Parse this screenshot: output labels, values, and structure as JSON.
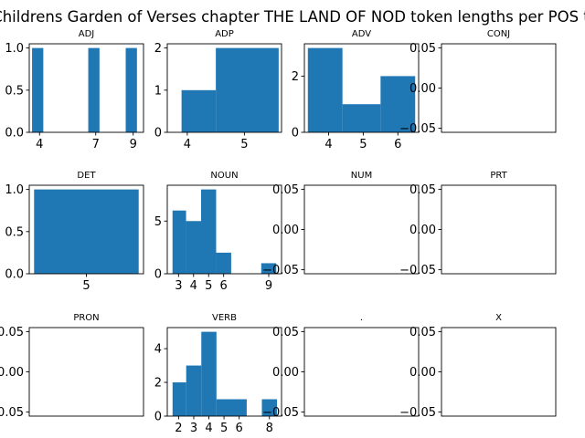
{
  "suptitle": "A Childrens Garden of Verses chapter THE LAND OF NOD token lengths per POS tag",
  "chart_data": [
    {
      "type": "bar",
      "title": "ADJ",
      "bars": [
        {
          "x0": 3.6,
          "x1": 4.2,
          "h": 1
        },
        {
          "x0": 6.6,
          "x1": 7.2,
          "h": 1
        },
        {
          "x0": 8.6,
          "x1": 9.2,
          "h": 1
        }
      ],
      "xlim": [
        3.45,
        9.55
      ],
      "ylim": [
        0,
        1.05
      ],
      "xticks": [
        {
          "v": 4,
          "label": "4"
        },
        {
          "v": 7,
          "label": "7"
        },
        {
          "v": 9,
          "label": "9"
        }
      ],
      "yticks": [
        {
          "v": 0,
          "label": "0.0"
        },
        {
          "v": 0.5,
          "label": "0.5"
        },
        {
          "v": 1,
          "label": "1.0"
        }
      ]
    },
    {
      "type": "bar",
      "title": "ADP",
      "bars": [
        {
          "x0": 3.9,
          "x1": 4.5,
          "h": 1
        },
        {
          "x0": 4.5,
          "x1": 5.6,
          "h": 2
        }
      ],
      "xlim": [
        3.65,
        5.65
      ],
      "ylim": [
        0,
        2.1
      ],
      "xticks": [
        {
          "v": 4,
          "label": "4"
        },
        {
          "v": 5,
          "label": "5"
        }
      ],
      "yticks": [
        {
          "v": 0,
          "label": "0"
        },
        {
          "v": 1,
          "label": "1"
        },
        {
          "v": 2,
          "label": "2"
        }
      ]
    },
    {
      "type": "bar",
      "title": "ADV",
      "bars": [
        {
          "x0": 3.4,
          "x1": 4.4,
          "h": 3
        },
        {
          "x0": 4.4,
          "x1": 5.5,
          "h": 1
        },
        {
          "x0": 5.5,
          "x1": 6.5,
          "h": 2
        }
      ],
      "xlim": [
        3.3,
        6.6
      ],
      "ylim": [
        0,
        3.15
      ],
      "xticks": [
        {
          "v": 4,
          "label": "4"
        },
        {
          "v": 5,
          "label": "5"
        },
        {
          "v": 6,
          "label": "6"
        }
      ],
      "yticks": [
        {
          "v": 0,
          "label": "0"
        },
        {
          "v": 2,
          "label": "2"
        }
      ]
    },
    {
      "type": "bar",
      "title": "CONJ",
      "bars": [],
      "xlim": [
        0,
        1
      ],
      "ylim": [
        -0.055,
        0.055
      ],
      "xticks": [],
      "yticks": [
        {
          "v": -0.05,
          "label": "−0.05"
        },
        {
          "v": 0,
          "label": "0.00"
        },
        {
          "v": 0.05,
          "label": "0.05"
        }
      ]
    },
    {
      "type": "bar",
      "title": "DET",
      "bars": [
        {
          "x0": 4.35,
          "x1": 5.65,
          "h": 1
        }
      ],
      "xlim": [
        4.29,
        5.71
      ],
      "ylim": [
        0,
        1.05
      ],
      "xticks": [
        {
          "v": 5,
          "label": "5"
        }
      ],
      "yticks": [
        {
          "v": 0,
          "label": "0.0"
        },
        {
          "v": 0.5,
          "label": "0.5"
        },
        {
          "v": 1,
          "label": "1.0"
        }
      ]
    },
    {
      "type": "bar",
      "title": "NOUN",
      "bars": [
        {
          "x0": 2.6,
          "x1": 3.5,
          "h": 6
        },
        {
          "x0": 3.5,
          "x1": 4.5,
          "h": 5
        },
        {
          "x0": 4.5,
          "x1": 5.5,
          "h": 8
        },
        {
          "x0": 5.5,
          "x1": 6.5,
          "h": 2
        },
        {
          "x0": 8.5,
          "x1": 9.5,
          "h": 1
        }
      ],
      "xlim": [
        2.25,
        9.85
      ],
      "ylim": [
        0,
        8.4
      ],
      "xticks": [
        {
          "v": 3,
          "label": "3"
        },
        {
          "v": 4,
          "label": "4"
        },
        {
          "v": 5,
          "label": "5"
        },
        {
          "v": 6,
          "label": "6"
        },
        {
          "v": 9,
          "label": "9"
        }
      ],
      "yticks": [
        {
          "v": 0,
          "label": "0"
        },
        {
          "v": 5,
          "label": "5"
        }
      ]
    },
    {
      "type": "bar",
      "title": "NUM",
      "bars": [],
      "xlim": [
        0,
        1
      ],
      "ylim": [
        -0.055,
        0.055
      ],
      "xticks": [],
      "yticks": [
        {
          "v": -0.05,
          "label": "−0.05"
        },
        {
          "v": 0,
          "label": "0.00"
        },
        {
          "v": 0.05,
          "label": "0.05"
        }
      ]
    },
    {
      "type": "bar",
      "title": "PRT",
      "bars": [],
      "xlim": [
        0,
        1
      ],
      "ylim": [
        -0.055,
        0.055
      ],
      "xticks": [],
      "yticks": [
        {
          "v": -0.05,
          "label": "−0.05"
        },
        {
          "v": 0,
          "label": "0.00"
        },
        {
          "v": 0.05,
          "label": "0.05"
        }
      ]
    },
    {
      "type": "bar",
      "title": "PRON",
      "bars": [],
      "xlim": [
        0,
        1
      ],
      "ylim": [
        -0.055,
        0.055
      ],
      "xticks": [],
      "yticks": [
        {
          "v": -0.05,
          "label": "−0.05"
        },
        {
          "v": 0,
          "label": "0.00"
        },
        {
          "v": 0.05,
          "label": "0.05"
        }
      ]
    },
    {
      "type": "bar",
      "title": "VERB",
      "bars": [
        {
          "x0": 1.6,
          "x1": 2.5,
          "h": 2
        },
        {
          "x0": 2.5,
          "x1": 3.5,
          "h": 3
        },
        {
          "x0": 3.5,
          "x1": 4.5,
          "h": 5
        },
        {
          "x0": 4.5,
          "x1": 6.5,
          "h": 1
        },
        {
          "x0": 7.5,
          "x1": 8.5,
          "h": 1
        }
      ],
      "xlim": [
        1.25,
        8.8
      ],
      "ylim": [
        0,
        5.25
      ],
      "xticks": [
        {
          "v": 2,
          "label": "2"
        },
        {
          "v": 3,
          "label": "3"
        },
        {
          "v": 4,
          "label": "4"
        },
        {
          "v": 5,
          "label": "5"
        },
        {
          "v": 6,
          "label": "6"
        },
        {
          "v": 8,
          "label": "8"
        }
      ],
      "yticks": [
        {
          "v": 0,
          "label": "0"
        },
        {
          "v": 2,
          "label": "2"
        },
        {
          "v": 4,
          "label": "4"
        }
      ]
    },
    {
      "type": "bar",
      "title": ".",
      "bars": [],
      "xlim": [
        0,
        1
      ],
      "ylim": [
        -0.055,
        0.055
      ],
      "xticks": [],
      "yticks": [
        {
          "v": -0.05,
          "label": "−0.05"
        },
        {
          "v": 0,
          "label": "0.00"
        },
        {
          "v": 0.05,
          "label": "0.05"
        }
      ]
    },
    {
      "type": "bar",
      "title": "X",
      "bars": [],
      "xlim": [
        0,
        1
      ],
      "ylim": [
        -0.055,
        0.055
      ],
      "xticks": [],
      "yticks": [
        {
          "v": -0.05,
          "label": "−0.05"
        },
        {
          "v": 0,
          "label": "0.00"
        },
        {
          "v": 0.05,
          "label": "0.05"
        }
      ]
    }
  ],
  "colors": {
    "bar": "#1f77b4",
    "axes": "#000000",
    "background": "#ffffff"
  }
}
